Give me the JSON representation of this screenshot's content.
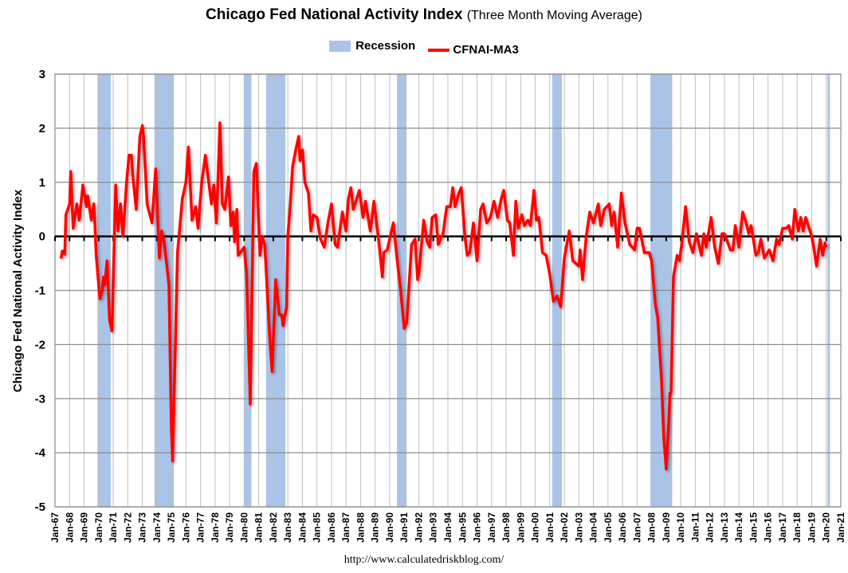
{
  "chart_data": {
    "type": "line",
    "title": "Chicago Fed National Activity Index",
    "subtitle": "(Three Month Moving Average)",
    "ylabel": "Chicago Fed National Activity Index",
    "xlabel": "",
    "ylim": [
      -5,
      3
    ],
    "yticks": [
      "3",
      "2",
      "1",
      "0",
      "-1",
      "-2",
      "-3",
      "-4",
      "-5"
    ],
    "xlim": [
      "1967-01",
      "2021-01"
    ],
    "xticks": [
      "Jan-67",
      "Jan-68",
      "Jan-69",
      "Jan-70",
      "Jan-71",
      "Jan-72",
      "Jan-73",
      "Jan-74",
      "Jan-75",
      "Jan-76",
      "Jan-77",
      "Jan-78",
      "Jan-79",
      "Jan-80",
      "Jan-81",
      "Jan-82",
      "Jan-83",
      "Jan-84",
      "Jan-85",
      "Jan-86",
      "Jan-87",
      "Jan-88",
      "Jan-89",
      "Jan-90",
      "Jan-91",
      "Jan-92",
      "Jan-93",
      "Jan-94",
      "Jan-95",
      "Jan-96",
      "Jan-97",
      "Jan-98",
      "Jan-99",
      "Jan-00",
      "Jan-01",
      "Jan-02",
      "Jan-03",
      "Jan-04",
      "Jan-05",
      "Jan-06",
      "Jan-07",
      "Jan-08",
      "Jan-09",
      "Jan-10",
      "Jan-11",
      "Jan-12",
      "Jan-13",
      "Jan-14",
      "Jan-15",
      "Jan-16",
      "Jan-17",
      "Jan-18",
      "Jan-19",
      "Jan-20",
      "Jan-21"
    ],
    "grid": true,
    "legend_position": "top",
    "legend": [
      "Recession",
      "CFNAI-MA3"
    ],
    "colors": {
      "recession": "#a9c4e8",
      "series": "#ff0000"
    },
    "recessions": [
      [
        "1969-12",
        "1970-11"
      ],
      [
        "1973-11",
        "1975-03"
      ],
      [
        "1980-01",
        "1980-07"
      ],
      [
        "1981-07",
        "1982-11"
      ],
      [
        "1990-07",
        "1991-03"
      ],
      [
        "2001-03",
        "2001-11"
      ],
      [
        "2007-12",
        "2009-06"
      ],
      [
        "2020-02",
        "2020-04"
      ]
    ],
    "series": [
      {
        "name": "CFNAI-MA3",
        "points": [
          [
            "1967-06",
            -0.41
          ],
          [
            "1967-07",
            -0.27
          ],
          [
            "1967-09",
            -0.33
          ],
          [
            "1967-10",
            0.4
          ],
          [
            "1968-01",
            0.6
          ],
          [
            "1968-02",
            1.2
          ],
          [
            "1968-04",
            0.15
          ],
          [
            "1968-07",
            0.6
          ],
          [
            "1968-09",
            0.3
          ],
          [
            "1968-12",
            0.95
          ],
          [
            "1969-03",
            0.55
          ],
          [
            "1969-04",
            0.75
          ],
          [
            "1969-07",
            0.3
          ],
          [
            "1969-09",
            0.6
          ],
          [
            "1969-10",
            0.2
          ],
          [
            "1969-11",
            -0.35
          ],
          [
            "1970-02",
            -1.15
          ],
          [
            "1970-04",
            -1.0
          ],
          [
            "1970-05",
            -0.75
          ],
          [
            "1970-06",
            -0.9
          ],
          [
            "1970-08",
            -0.45
          ],
          [
            "1970-10",
            -1.55
          ],
          [
            "1970-12",
            -1.75
          ],
          [
            "1971-03",
            0.95
          ],
          [
            "1971-05",
            0.1
          ],
          [
            "1971-07",
            0.6
          ],
          [
            "1971-09",
            0.0
          ],
          [
            "1971-12",
            1.0
          ],
          [
            "1972-02",
            1.5
          ],
          [
            "1972-04",
            1.5
          ],
          [
            "1972-05",
            1.15
          ],
          [
            "1972-08",
            0.5
          ],
          [
            "1972-11",
            1.85
          ],
          [
            "1973-01",
            2.05
          ],
          [
            "1973-02",
            1.85
          ],
          [
            "1973-05",
            0.6
          ],
          [
            "1973-09",
            0.25
          ],
          [
            "1973-12",
            1.25
          ],
          [
            "1974-03",
            -0.4
          ],
          [
            "1974-05",
            0.1
          ],
          [
            "1974-07",
            -0.1
          ],
          [
            "1974-11",
            -0.9
          ],
          [
            "1975-01",
            -3.6
          ],
          [
            "1975-02",
            -4.15
          ],
          [
            "1975-06",
            -0.3
          ],
          [
            "1975-10",
            0.7
          ],
          [
            "1976-01",
            1.0
          ],
          [
            "1976-03",
            1.65
          ],
          [
            "1976-06",
            0.3
          ],
          [
            "1976-09",
            0.55
          ],
          [
            "1976-11",
            0.15
          ],
          [
            "1977-02",
            1.0
          ],
          [
            "1977-05",
            1.5
          ],
          [
            "1977-10",
            0.6
          ],
          [
            "1977-12",
            0.95
          ],
          [
            "1978-02",
            0.25
          ],
          [
            "1978-03",
            0.8
          ],
          [
            "1978-05",
            2.1
          ],
          [
            "1978-07",
            0.6
          ],
          [
            "1978-09",
            0.5
          ],
          [
            "1978-12",
            1.1
          ],
          [
            "1979-02",
            0.2
          ],
          [
            "1979-04",
            0.45
          ],
          [
            "1979-05",
            -0.1
          ],
          [
            "1979-07",
            0.5
          ],
          [
            "1979-08",
            -0.35
          ],
          [
            "1980-01",
            -0.2
          ],
          [
            "1980-03",
            -0.7
          ],
          [
            "1980-06",
            -3.1
          ],
          [
            "1980-09",
            1.2
          ],
          [
            "1980-11",
            1.35
          ],
          [
            "1981-02",
            -0.35
          ],
          [
            "1981-04",
            0.0
          ],
          [
            "1981-06",
            -0.15
          ],
          [
            "1981-10",
            -1.85
          ],
          [
            "1981-12",
            -2.5
          ],
          [
            "1982-03",
            -0.8
          ],
          [
            "1982-06",
            -1.45
          ],
          [
            "1982-08",
            -1.45
          ],
          [
            "1982-09",
            -1.65
          ],
          [
            "1982-12",
            -1.3
          ],
          [
            "1983-01",
            0.0
          ],
          [
            "1983-03",
            0.6
          ],
          [
            "1983-05",
            1.3
          ],
          [
            "1983-08",
            1.65
          ],
          [
            "1983-10",
            1.85
          ],
          [
            "1983-11",
            1.4
          ],
          [
            "1984-01",
            1.6
          ],
          [
            "1984-03",
            1.0
          ],
          [
            "1984-06",
            0.8
          ],
          [
            "1984-08",
            0.1
          ],
          [
            "1984-10",
            0.4
          ],
          [
            "1985-01",
            0.35
          ],
          [
            "1985-04",
            -0.05
          ],
          [
            "1985-07",
            -0.2
          ],
          [
            "1985-10",
            0.25
          ],
          [
            "1986-01",
            0.6
          ],
          [
            "1986-04",
            -0.15
          ],
          [
            "1986-06",
            -0.2
          ],
          [
            "1986-10",
            0.45
          ],
          [
            "1987-01",
            0.1
          ],
          [
            "1987-03",
            0.7
          ],
          [
            "1987-05",
            0.9
          ],
          [
            "1987-07",
            0.5
          ],
          [
            "1987-12",
            0.85
          ],
          [
            "1988-03",
            0.35
          ],
          [
            "1988-05",
            0.65
          ],
          [
            "1988-09",
            0.1
          ],
          [
            "1988-12",
            0.65
          ],
          [
            "1989-04",
            -0.1
          ],
          [
            "1989-07",
            -0.75
          ],
          [
            "1989-08",
            -0.3
          ],
          [
            "1989-11",
            -0.25
          ],
          [
            "1990-04",
            0.25
          ],
          [
            "1990-07",
            -0.4
          ],
          [
            "1990-10",
            -1.0
          ],
          [
            "1991-01",
            -1.7
          ],
          [
            "1991-03",
            -1.6
          ],
          [
            "1991-07",
            -0.15
          ],
          [
            "1991-10",
            -0.05
          ],
          [
            "1991-12",
            -0.8
          ],
          [
            "1992-01",
            -0.7
          ],
          [
            "1992-05",
            0.3
          ],
          [
            "1992-08",
            -0.1
          ],
          [
            "1992-10",
            -0.2
          ],
          [
            "1992-12",
            0.35
          ],
          [
            "1993-03",
            0.4
          ],
          [
            "1993-05",
            -0.15
          ],
          [
            "1993-09",
            0.05
          ],
          [
            "1993-12",
            0.55
          ],
          [
            "1994-03",
            0.55
          ],
          [
            "1994-05",
            0.9
          ],
          [
            "1994-07",
            0.55
          ],
          [
            "1994-10",
            0.8
          ],
          [
            "1994-12",
            0.9
          ],
          [
            "1995-03",
            0.0
          ],
          [
            "1995-05",
            -0.35
          ],
          [
            "1995-07",
            -0.3
          ],
          [
            "1995-10",
            0.25
          ],
          [
            "1996-01",
            -0.45
          ],
          [
            "1996-04",
            0.5
          ],
          [
            "1996-06",
            0.6
          ],
          [
            "1996-09",
            0.25
          ],
          [
            "1996-12",
            0.35
          ],
          [
            "1997-03",
            0.65
          ],
          [
            "1997-06",
            0.35
          ],
          [
            "1997-09",
            0.7
          ],
          [
            "1997-11",
            0.85
          ],
          [
            "1998-02",
            0.3
          ],
          [
            "1998-04",
            0.25
          ],
          [
            "1998-07",
            -0.35
          ],
          [
            "1998-09",
            0.65
          ],
          [
            "1998-11",
            0.15
          ],
          [
            "1999-02",
            0.4
          ],
          [
            "1999-04",
            0.2
          ],
          [
            "1999-07",
            0.3
          ],
          [
            "1999-09",
            0.2
          ],
          [
            "1999-12",
            0.85
          ],
          [
            "2000-02",
            0.3
          ],
          [
            "2000-04",
            0.35
          ],
          [
            "2000-07",
            -0.3
          ],
          [
            "2000-10",
            -0.35
          ],
          [
            "2001-01",
            -0.7
          ],
          [
            "2001-04",
            -1.2
          ],
          [
            "2001-07",
            -1.1
          ],
          [
            "2001-10",
            -1.3
          ],
          [
            "2002-01",
            -0.4
          ],
          [
            "2002-05",
            0.1
          ],
          [
            "2002-08",
            -0.45
          ],
          [
            "2003-01",
            -0.55
          ],
          [
            "2003-02",
            -0.25
          ],
          [
            "2003-04",
            -0.8
          ],
          [
            "2003-07",
            0.0
          ],
          [
            "2003-10",
            0.45
          ],
          [
            "2004-01",
            0.25
          ],
          [
            "2004-05",
            0.6
          ],
          [
            "2004-07",
            0.2
          ],
          [
            "2004-10",
            0.5
          ],
          [
            "2005-02",
            0.6
          ],
          [
            "2005-04",
            0.2
          ],
          [
            "2005-06",
            0.45
          ],
          [
            "2005-09",
            -0.2
          ],
          [
            "2005-12",
            0.8
          ],
          [
            "2006-03",
            0.25
          ],
          [
            "2006-07",
            -0.15
          ],
          [
            "2006-11",
            -0.25
          ],
          [
            "2007-01",
            0.15
          ],
          [
            "2007-03",
            0.15
          ],
          [
            "2007-07",
            -0.3
          ],
          [
            "2007-11",
            -0.3
          ],
          [
            "2008-01",
            -0.45
          ],
          [
            "2008-04",
            -1.25
          ],
          [
            "2008-06",
            -1.5
          ],
          [
            "2008-09",
            -2.6
          ],
          [
            "2008-11",
            -3.7
          ],
          [
            "2009-01",
            -4.3
          ],
          [
            "2009-03",
            -3.5
          ],
          [
            "2009-04",
            -2.9
          ],
          [
            "2009-05",
            -2.9
          ],
          [
            "2009-07",
            -0.75
          ],
          [
            "2009-10",
            -0.35
          ],
          [
            "2009-12",
            -0.45
          ],
          [
            "2010-02",
            -0.1
          ],
          [
            "2010-05",
            0.55
          ],
          [
            "2010-08",
            -0.1
          ],
          [
            "2010-11",
            -0.3
          ],
          [
            "2011-02",
            0.05
          ],
          [
            "2011-06",
            -0.35
          ],
          [
            "2011-08",
            0.05
          ],
          [
            "2011-10",
            -0.2
          ],
          [
            "2012-02",
            0.35
          ],
          [
            "2012-05",
            -0.2
          ],
          [
            "2012-08",
            -0.5
          ],
          [
            "2012-11",
            0.05
          ],
          [
            "2013-01",
            0.05
          ],
          [
            "2013-06",
            -0.25
          ],
          [
            "2013-08",
            -0.25
          ],
          [
            "2013-10",
            0.2
          ],
          [
            "2014-01",
            -0.2
          ],
          [
            "2014-04",
            0.45
          ],
          [
            "2014-07",
            0.25
          ],
          [
            "2014-09",
            0.05
          ],
          [
            "2014-11",
            0.2
          ],
          [
            "2015-03",
            -0.35
          ],
          [
            "2015-05",
            -0.3
          ],
          [
            "2015-07",
            -0.05
          ],
          [
            "2015-10",
            -0.4
          ],
          [
            "2016-02",
            -0.25
          ],
          [
            "2016-05",
            -0.45
          ],
          [
            "2016-08",
            -0.05
          ],
          [
            "2016-10",
            -0.15
          ],
          [
            "2017-01",
            0.15
          ],
          [
            "2017-04",
            0.15
          ],
          [
            "2017-06",
            0.2
          ],
          [
            "2017-09",
            -0.05
          ],
          [
            "2017-11",
            0.5
          ],
          [
            "2018-02",
            0.1
          ],
          [
            "2018-04",
            0.35
          ],
          [
            "2018-06",
            0.1
          ],
          [
            "2018-08",
            0.35
          ],
          [
            "2019-01",
            0.0
          ],
          [
            "2019-03",
            -0.25
          ],
          [
            "2019-05",
            -0.55
          ],
          [
            "2019-08",
            -0.05
          ],
          [
            "2019-10",
            -0.35
          ],
          [
            "2019-12",
            -0.12
          ],
          [
            "2020-01",
            -0.2
          ]
        ]
      }
    ],
    "source": "http://www.calculatedriskblog.com/"
  }
}
